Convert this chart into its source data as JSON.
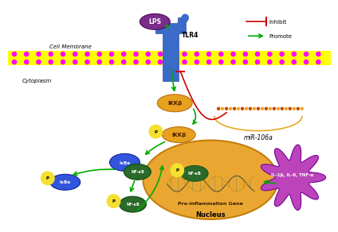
{
  "bg_color": "#ffffff",
  "cell_membrane_label": "Cell Membrane",
  "cytoplasm_label": "Cytoplasm",
  "nucleus_label": "Nucleus",
  "lps_label": "LPS",
  "tlr4_label": "TLR4",
  "ikkb_label1": "IKKβ",
  "ikkb_label2": "IKKβ",
  "ikba_label": "IκBα",
  "ikba_label2": "IκBα",
  "nfkb_label": "NF-κB",
  "nfkb_label2": "NF-κB",
  "nfkb_label3": "NF-κB",
  "p_label": "P",
  "mir_label": "miR-106a",
  "pro_inflam_label": "Pro-inflammation Gene",
  "cytokine_label": "IL-1β, IL-6, TNF-α",
  "inhibit_label": "Inhibit",
  "promote_label": "Promote",
  "inhibit_color": "#cc0000",
  "promote_color": "#00aa00",
  "lps_color": "#7b2d8b",
  "tlr4_color": "#3a6bc9",
  "ikkb_color": "#e8a020",
  "p_color": "#f5e030",
  "p_text_color": "#000000",
  "ikba_color": "#3355dd",
  "nfkb_color": "#2a6a2a",
  "nucleus_color_inner": "#e8a020",
  "nucleus_color_outer": "#c07800",
  "cytokine_bg": "#bb44bb",
  "cytokine_border": "#770099",
  "mir_color": "#e8a820",
  "mir_dot_color": "#cc4400",
  "mem_yellow": "#ffff00",
  "mem_magenta": "#ff00ff"
}
